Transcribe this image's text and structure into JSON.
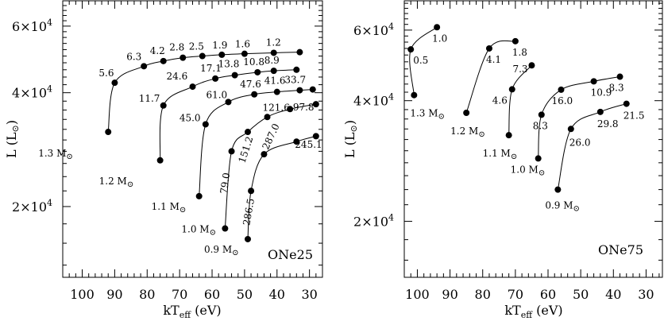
{
  "chart_data": [
    {
      "type": "line",
      "panel_label": "ONe25",
      "xlabel_main": "kT",
      "xlabel_sub": "eff",
      "xlabel_unit": " (eV)",
      "ylabel": "L (L",
      "ylabel_sun": "⊙",
      "ylabel_close": ")",
      "x_reversed": true,
      "xlim": [
        106,
        26
      ],
      "ylim": [
        13000,
        70000
      ],
      "y_scale": "log",
      "x_ticks": [
        100,
        90,
        80,
        70,
        60,
        50,
        40,
        30
      ],
      "x_tick_labels": [
        "100",
        "90",
        "80",
        "70",
        "60",
        "50",
        "40",
        "30"
      ],
      "y_ticks": [
        20000,
        40000,
        60000
      ],
      "y_tick_mantissa": [
        "2×10",
        "4×10",
        "6×10"
      ],
      "y_tick_exp": [
        "4",
        "4",
        "4"
      ],
      "series": [
        {
          "mass": "1.3 M",
          "points": [
            {
              "x": 92,
              "y": 31500,
              "label": ""
            },
            {
              "x": 90,
              "y": 42500,
              "label": "5.6"
            },
            {
              "x": 81,
              "y": 47000,
              "label": "6.3"
            },
            {
              "x": 75,
              "y": 48500,
              "label": "4.2"
            },
            {
              "x": 69,
              "y": 49500,
              "label": "2.8"
            },
            {
              "x": 63,
              "y": 50000,
              "label": "2.5"
            },
            {
              "x": 57,
              "y": 50400,
              "label": "1.9"
            },
            {
              "x": 50,
              "y": 50700,
              "label": "1.6"
            },
            {
              "x": 41,
              "y": 51000,
              "label": "1.2"
            },
            {
              "x": 33,
              "y": 51200,
              "label": ""
            }
          ]
        },
        {
          "mass": "1.2 M",
          "points": [
            {
              "x": 76,
              "y": 26500,
              "label": ""
            },
            {
              "x": 75,
              "y": 37000,
              "label": "11.7"
            },
            {
              "x": 66,
              "y": 41500,
              "label": "24.6"
            },
            {
              "x": 59,
              "y": 43600,
              "label": "17.1"
            },
            {
              "x": 53,
              "y": 44500,
              "label": "13.8"
            },
            {
              "x": 46,
              "y": 45300,
              "label": "10.8"
            },
            {
              "x": 41,
              "y": 45700,
              "label": "8.9"
            },
            {
              "x": 34,
              "y": 46000,
              "label": ""
            }
          ]
        },
        {
          "mass": "1.1 M",
          "points": [
            {
              "x": 64,
              "y": 21300,
              "label": ""
            },
            {
              "x": 62,
              "y": 33000,
              "label": "45.0"
            },
            {
              "x": 55,
              "y": 37800,
              "label": "61.0"
            },
            {
              "x": 47,
              "y": 39600,
              "label": "47.6"
            },
            {
              "x": 40,
              "y": 40200,
              "label": "41.6"
            },
            {
              "x": 33,
              "y": 40600,
              "label": "33.7"
            },
            {
              "x": 29,
              "y": 40800,
              "label": ""
            }
          ]
        },
        {
          "mass": "1.0 M",
          "points": [
            {
              "x": 56,
              "y": 17500,
              "label": ""
            },
            {
              "x": 54,
              "y": 28000,
              "label": "79.0"
            },
            {
              "x": 49,
              "y": 31500,
              "label": "151.2"
            },
            {
              "x": 43,
              "y": 34500,
              "label": "121.6"
            },
            {
              "x": 36,
              "y": 36200,
              "label": ""
            },
            {
              "x": 28,
              "y": 37300,
              "label": "97.8"
            }
          ]
        },
        {
          "mass": "0.9 M",
          "points": [
            {
              "x": 49,
              "y": 16400,
              "label": ""
            },
            {
              "x": 48,
              "y": 22000,
              "label": "286.5"
            },
            {
              "x": 44,
              "y": 27500,
              "label": "287.0"
            },
            {
              "x": 34,
              "y": 29700,
              "label": "245.1"
            },
            {
              "x": 28,
              "y": 30700,
              "label": ""
            }
          ]
        }
      ]
    },
    {
      "type": "line",
      "panel_label": "ONe75",
      "xlabel_main": "kT",
      "xlabel_sub": "eff",
      "xlabel_unit": " (eV)",
      "ylabel": "L (L",
      "ylabel_sun": "⊙",
      "ylabel_close": ")",
      "x_reversed": true,
      "xlim": [
        104,
        25
      ],
      "ylim": [
        14500,
        71000
      ],
      "y_scale": "log",
      "x_ticks": [
        100,
        90,
        80,
        70,
        60,
        50,
        40,
        30
      ],
      "x_tick_labels": [
        "100",
        "90",
        "80",
        "70",
        "60",
        "50",
        "40",
        "30"
      ],
      "y_ticks": [
        20000,
        40000,
        60000
      ],
      "y_tick_mantissa": [
        "2×10",
        "4×10",
        "6×10"
      ],
      "y_tick_exp": [
        "4",
        "4",
        "4"
      ],
      "series": [
        {
          "mass": "1.3 M",
          "points": [
            {
              "x": 101,
              "y": 41300,
              "label": ""
            },
            {
              "x": 102,
              "y": 53700,
              "label": "0.5"
            },
            {
              "x": 94,
              "y": 61000,
              "label": "1.0"
            }
          ]
        },
        {
          "mass": "1.2 M",
          "points": [
            {
              "x": 85,
              "y": 37300,
              "label": ""
            },
            {
              "x": 78,
              "y": 54000,
              "label": "4.1"
            },
            {
              "x": 70,
              "y": 56300,
              "label": "1.8"
            }
          ]
        },
        {
          "mass": "1.1 M",
          "points": [
            {
              "x": 72,
              "y": 32800,
              "label": ""
            },
            {
              "x": 71,
              "y": 42700,
              "label": "4.6"
            },
            {
              "x": 65,
              "y": 49000,
              "label": "7.3"
            }
          ]
        },
        {
          "mass": "1.0 M",
          "points": [
            {
              "x": 63,
              "y": 28700,
              "label": ""
            },
            {
              "x": 62,
              "y": 36900,
              "label": "8.3"
            },
            {
              "x": 56,
              "y": 42600,
              "label": "16.0"
            },
            {
              "x": 46,
              "y": 44700,
              "label": "10.9"
            },
            {
              "x": 38,
              "y": 45900,
              "label": "8.3"
            }
          ]
        },
        {
          "mass": "0.9 M",
          "points": [
            {
              "x": 57,
              "y": 24000,
              "label": ""
            },
            {
              "x": 53,
              "y": 34000,
              "label": "26.0"
            },
            {
              "x": 44,
              "y": 37500,
              "label": "29.8"
            },
            {
              "x": 36,
              "y": 39300,
              "label": "21.5"
            }
          ]
        }
      ]
    }
  ]
}
